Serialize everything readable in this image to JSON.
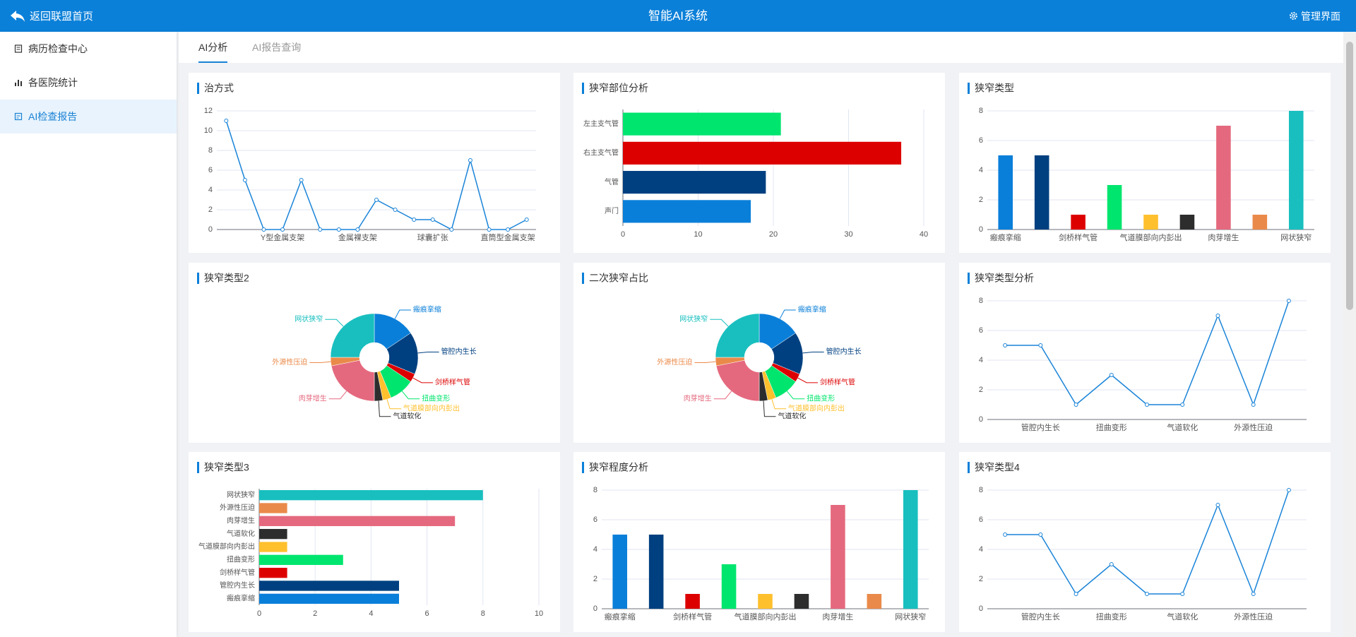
{
  "header": {
    "back": "返回联盟首页",
    "title": "智能AI系统",
    "admin": "管理界面"
  },
  "sidebar": [
    "病历检查中心",
    "各医院统计",
    "AI检查报告"
  ],
  "tabs": [
    "AI分析",
    "AI报告查询"
  ],
  "chart_data": [
    {
      "type": "line",
      "title": "治方式",
      "color": "#1a84d8",
      "categories": [
        null,
        null,
        null,
        "Y型金属支架",
        null,
        null,
        null,
        "金属裸支架",
        null,
        null,
        null,
        "球囊扩张",
        null,
        null,
        null,
        "直筒型金属支架",
        null
      ],
      "values": [
        11,
        5,
        0,
        0,
        5,
        0,
        0,
        0,
        3,
        2,
        1,
        1,
        0,
        7,
        0,
        0,
        1
      ],
      "ylim": [
        0,
        12
      ],
      "yticks": [
        0,
        2,
        4,
        6,
        8,
        10,
        12
      ],
      "grid": true
    },
    {
      "type": "hbar",
      "title": "狭窄部位分析",
      "categories": [
        "声门",
        "气管",
        "右主支气管",
        "左主支气管"
      ],
      "values": [
        17,
        19,
        37,
        21
      ],
      "colors": [
        "#0a7fd9",
        "#004080",
        "#dd0000",
        "#00e56e"
      ],
      "xlim": [
        0,
        40
      ],
      "xticks": [
        0,
        10,
        20,
        30,
        40
      ],
      "grid": true
    },
    {
      "type": "bar",
      "title": "狭窄类型",
      "categories": [
        "瘢痕挛缩",
        null,
        "剑桥样气管",
        null,
        "气道膜部向内彭出",
        null,
        "肉芽增生",
        null,
        "网状狭窄"
      ],
      "values": [
        5,
        5,
        1,
        3,
        1,
        1,
        7,
        1,
        8
      ],
      "colors": [
        "#0a7fd9",
        "#004080",
        "#dd0000",
        "#00e56e",
        "#ffc02e",
        "#2d2d2d",
        "#e5697e",
        "#ea8a4a",
        "#19bfbf"
      ],
      "ylim": [
        0,
        8
      ],
      "yticks": [
        0,
        2,
        4,
        6,
        8
      ],
      "grid": true
    },
    {
      "type": "pie",
      "title": "狭窄类型2",
      "categories": [
        "瘢痕挛缩",
        "管腔内生长",
        "剑桥样气管",
        "扭曲变形",
        "气道膜部向内彭出",
        "气道软化",
        "肉芽增生",
        "外源性压迫",
        "网状狭窄"
      ],
      "values": [
        5,
        5,
        1,
        3,
        1,
        1,
        7,
        1,
        8
      ],
      "colors": [
        "#0a7fd9",
        "#004080",
        "#dd0000",
        "#00e56e",
        "#ffc02e",
        "#2d2d2d",
        "#e5697e",
        "#ea8a4a",
        "#19bfbf"
      ]
    },
    {
      "type": "pie",
      "title": "二次狭窄占比",
      "categories": [
        "瘢痕挛缩",
        "管腔内生长",
        "剑桥样气管",
        "扭曲变形",
        "气道膜部向内彭出",
        "气道软化",
        "肉芽增生",
        "外源性压迫",
        "网状狭窄"
      ],
      "values": [
        5,
        5,
        1,
        3,
        1,
        1,
        7,
        1,
        8
      ],
      "colors": [
        "#0a7fd9",
        "#004080",
        "#dd0000",
        "#00e56e",
        "#ffc02e",
        "#2d2d2d",
        "#e5697e",
        "#ea8a4a",
        "#19bfbf"
      ]
    },
    {
      "type": "line",
      "title": "狭窄类型分析",
      "color": "#1a84d8",
      "categories": [
        null,
        "管腔内生长",
        null,
        "扭曲变形",
        null,
        "气道软化",
        null,
        "外源性压迫",
        null
      ],
      "values": [
        5,
        5,
        1,
        3,
        1,
        1,
        7,
        1,
        8
      ],
      "ylim": [
        0,
        8
      ],
      "yticks": [
        0,
        2,
        4,
        6,
        8
      ],
      "grid": true
    },
    {
      "type": "hbar",
      "title": "狭窄类型3",
      "categories": [
        "瘢痕挛缩",
        "管腔内生长",
        "剑桥样气管",
        "扭曲变形",
        "气道膜部向内彭出",
        "气道软化",
        "肉芽增生",
        "外源性压迫",
        "网状狭窄"
      ],
      "values": [
        5,
        5,
        1,
        3,
        1,
        1,
        7,
        1,
        8
      ],
      "colors": [
        "#0a7fd9",
        "#004080",
        "#dd0000",
        "#00e56e",
        "#ffc02e",
        "#2d2d2d",
        "#e5697e",
        "#ea8a4a",
        "#19bfbf"
      ],
      "xlim": [
        0,
        10
      ],
      "xticks": [
        0,
        2,
        4,
        6,
        8,
        10
      ],
      "grid": true
    },
    {
      "type": "bar",
      "title": "狭窄程度分析",
      "categories": [
        "瘢痕挛缩",
        null,
        "剑桥样气管",
        null,
        "气道膜部向内彭出",
        null,
        "肉芽增生",
        null,
        "网状狭窄"
      ],
      "values": [
        5,
        5,
        1,
        3,
        1,
        1,
        7,
        1,
        8
      ],
      "colors": [
        "#0a7fd9",
        "#004080",
        "#dd0000",
        "#00e56e",
        "#ffc02e",
        "#2d2d2d",
        "#e5697e",
        "#ea8a4a",
        "#19bfbf"
      ],
      "ylim": [
        0,
        8
      ],
      "yticks": [
        0,
        2,
        4,
        6,
        8
      ],
      "grid": true
    },
    {
      "type": "line",
      "title": "狭窄类型4",
      "color": "#1a84d8",
      "categories": [
        null,
        "管腔内生长",
        null,
        "扭曲变形",
        null,
        "气道软化",
        null,
        "外源性压迫",
        null
      ],
      "values": [
        5,
        5,
        1,
        3,
        1,
        1,
        7,
        1,
        8
      ],
      "ylim": [
        0,
        8
      ],
      "yticks": [
        0,
        2,
        4,
        6,
        8
      ],
      "grid": true
    }
  ]
}
